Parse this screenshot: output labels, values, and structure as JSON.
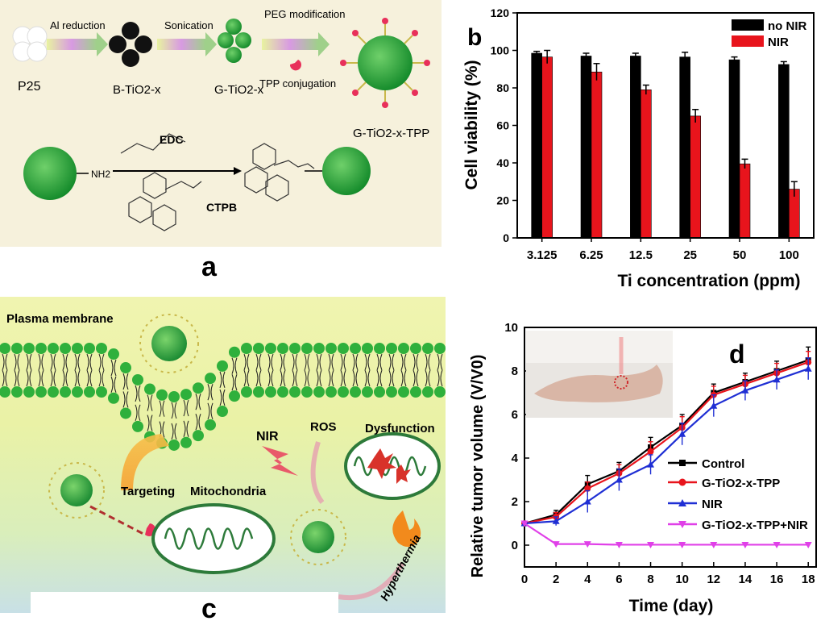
{
  "panel_labels": {
    "a": "a",
    "b": "b",
    "c": "c",
    "d": "d"
  },
  "panel_a": {
    "steps": [
      "Al reduction",
      "Sonication",
      "PEG modification",
      "TPP conjugation"
    ],
    "species": {
      "p25": "P25",
      "b_tio2": "B-TiO2-x",
      "g_tio2": "G-TiO2-x",
      "g_tio2_tpp": "G-TiO2-x-TPP"
    },
    "reagents": {
      "edc": "EDC",
      "ctpb": "CTPB",
      "amine": "NH2"
    }
  },
  "panel_c": {
    "labels": {
      "membrane": "Plasma membrane",
      "targeting": "Targeting",
      "mitochondria": "Mitochondria",
      "nir": "NIR",
      "ros": "ROS",
      "dysfunction": "Dysfunction",
      "hyperthermia": "Hyperthermia"
    }
  },
  "colors": {
    "black_series": "#000000",
    "red_series": "#e8141c",
    "blue_series": "#1f2fd4",
    "magenta_series": "#e040e8",
    "green": "#2e9a3a"
  },
  "chart_data": [
    {
      "id": "b",
      "type": "bar",
      "xlabel": "Ti concentration (ppm)",
      "ylabel": "Cell viability (%)",
      "categories": [
        "3.125",
        "6.25",
        "12.5",
        "25",
        "50",
        "100"
      ],
      "ylim": [
        0,
        120
      ],
      "yticks": [
        0,
        20,
        40,
        60,
        80,
        100,
        120
      ],
      "legend_position": "top-right",
      "series": [
        {
          "name": "no NIR",
          "color": "#000000",
          "values": [
            98.5,
            97,
            97,
            96.5,
            95,
            92.5
          ],
          "errors": [
            1,
            1.5,
            1.5,
            2.5,
            1.5,
            1.5
          ]
        },
        {
          "name": "NIR",
          "color": "#e8141c",
          "values": [
            96.5,
            88.5,
            79,
            65,
            39.5,
            26
          ],
          "errors": [
            3.5,
            4.5,
            2.5,
            3.5,
            2.5,
            4
          ]
        }
      ]
    },
    {
      "id": "d",
      "type": "line",
      "xlabel": "Time (day)",
      "ylabel": "Relative tumor volume (V/V0)",
      "x": [
        0,
        2,
        4,
        6,
        8,
        10,
        12,
        14,
        16,
        18
      ],
      "xlim": [
        0,
        18.5
      ],
      "ylim": [
        -1,
        10
      ],
      "xticks": [
        0,
        2,
        4,
        6,
        8,
        10,
        12,
        14,
        16,
        18
      ],
      "yticks": [
        0,
        2,
        4,
        6,
        8,
        10
      ],
      "legend_position": "lower-right",
      "series": [
        {
          "name": "Control",
          "color": "#000000",
          "marker": "square",
          "values": [
            1,
            1.4,
            2.8,
            3.4,
            4.5,
            5.5,
            7.0,
            7.5,
            8.0,
            8.5
          ],
          "errors": [
            0.1,
            0.2,
            0.4,
            0.4,
            0.45,
            0.5,
            0.4,
            0.4,
            0.45,
            0.6
          ]
        },
        {
          "name": "G-TiO2-x-TPP",
          "color": "#e8141c",
          "marker": "circle",
          "values": [
            1,
            1.3,
            2.6,
            3.3,
            4.3,
            5.4,
            6.9,
            7.4,
            7.9,
            8.4
          ],
          "errors": [
            0.1,
            0.2,
            0.3,
            0.4,
            0.45,
            0.5,
            0.4,
            0.4,
            0.45,
            0.5
          ]
        },
        {
          "name": "NIR",
          "color": "#1f2fd4",
          "marker": "triangle",
          "values": [
            1,
            1.1,
            2.0,
            3.0,
            3.7,
            5.1,
            6.4,
            7.1,
            7.6,
            8.1
          ],
          "errors": [
            0.1,
            0.2,
            0.5,
            0.5,
            0.45,
            0.5,
            0.5,
            0.45,
            0.45,
            0.5
          ]
        },
        {
          "name": "G-TiO2-x-TPP+NIR",
          "color": "#e040e8",
          "marker": "triangle-down",
          "values": [
            1,
            0.05,
            0.05,
            0.02,
            0.02,
            0.02,
            0.02,
            0.02,
            0.02,
            0.02
          ],
          "errors": [
            0.1,
            0.05,
            0.05,
            0.05,
            0.05,
            0.05,
            0.05,
            0.05,
            0.05,
            0.05
          ]
        }
      ]
    }
  ]
}
